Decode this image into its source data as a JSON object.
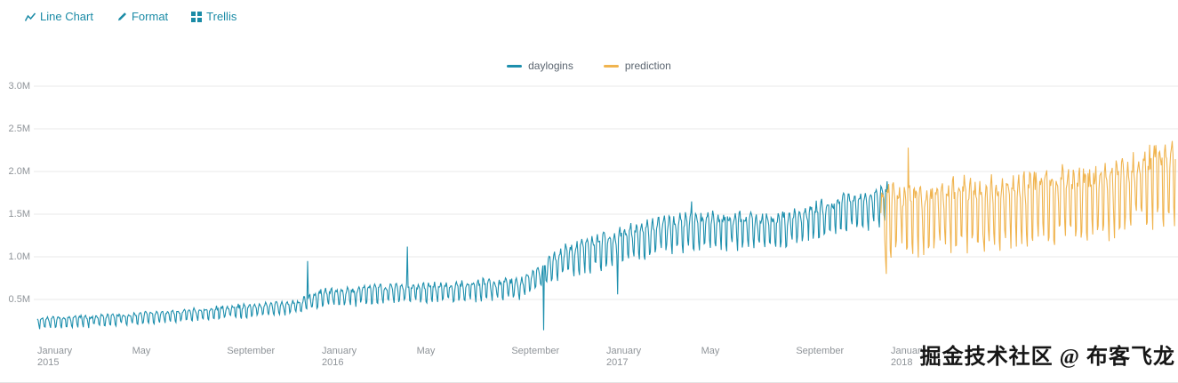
{
  "toolbar": {
    "items": [
      {
        "label": "Line Chart",
        "icon": "line-chart-icon"
      },
      {
        "label": "Format",
        "icon": "format-paintbrush-icon"
      },
      {
        "label": "Trellis",
        "icon": "trellis-grid-icon"
      }
    ]
  },
  "legend": {
    "items": [
      {
        "label": "daylogins",
        "color": "#1d8fad"
      },
      {
        "label": "prediction",
        "color": "#f0b44f"
      }
    ]
  },
  "watermark": {
    "text": "掘金技术社区 @ 布客飞龙"
  },
  "colors": {
    "toolbar_link": "#1b8ba6",
    "gridline": "#e9e9e9",
    "axis_label": "#8f9499",
    "daylogins": "#1d8fad",
    "prediction": "#f0b44f",
    "watermark": "#161616",
    "background": "#ffffff"
  },
  "chart_data": {
    "type": "line",
    "title": "",
    "xlabel": "",
    "ylabel": "",
    "x_axis_type": "time",
    "x_start_date": "2015-01-01",
    "x_span_years": 4.0,
    "ylim": [
      0,
      3000000
    ],
    "grid": "horizontal",
    "legend_position": "top-center",
    "values_unit": "logins per day",
    "y_ticks": [
      {
        "value": 500000,
        "label": "0.5M"
      },
      {
        "value": 1000000,
        "label": "1.0M"
      },
      {
        "value": 1500000,
        "label": "1.5M"
      },
      {
        "value": 2000000,
        "label": "2.0M"
      },
      {
        "value": 2500000,
        "label": "2.5M"
      },
      {
        "value": 3000000,
        "label": "3.0M"
      }
    ],
    "x_ticks": [
      {
        "pos": 0,
        "label": "January",
        "year": "2015"
      },
      {
        "pos": 0.3333,
        "label": "May",
        "year": ""
      },
      {
        "pos": 0.6667,
        "label": "September",
        "year": ""
      },
      {
        "pos": 1,
        "label": "January",
        "year": "2016"
      },
      {
        "pos": 1.3333,
        "label": "May",
        "year": ""
      },
      {
        "pos": 1.6667,
        "label": "September",
        "year": ""
      },
      {
        "pos": 2,
        "label": "January",
        "year": "2017"
      },
      {
        "pos": 2.3333,
        "label": "May",
        "year": ""
      },
      {
        "pos": 2.6667,
        "label": "September",
        "year": ""
      },
      {
        "pos": 3,
        "label": "January",
        "year": "2018"
      }
    ],
    "series": [
      {
        "name": "daylogins",
        "color": "#1d8fad",
        "start": 0.0,
        "end": 2.99,
        "seed": 11,
        "noise": 0.35,
        "weekly_profile": [
          -1.0,
          0.45,
          0.7,
          0.8,
          0.7,
          0.35,
          -0.8
        ],
        "trend_keyframes": [
          [
            0.0,
            230000,
            60000
          ],
          [
            0.33,
            280000,
            62000
          ],
          [
            0.67,
            360000,
            70000
          ],
          [
            0.92,
            420000,
            80000
          ],
          [
            1.0,
            520000,
            100000
          ],
          [
            1.25,
            580000,
            105000
          ],
          [
            1.5,
            600000,
            110000
          ],
          [
            1.7,
            640000,
            110000
          ],
          [
            1.78,
            800000,
            140000
          ],
          [
            1.85,
            960000,
            170000
          ],
          [
            2.0,
            1100000,
            190000
          ],
          [
            2.2,
            1280000,
            195000
          ],
          [
            2.4,
            1330000,
            200000
          ],
          [
            2.6,
            1310000,
            200000
          ],
          [
            2.75,
            1450000,
            200000
          ],
          [
            2.9,
            1560000,
            210000
          ],
          [
            2.99,
            1640000,
            220000
          ]
        ],
        "anomalies": [
          [
            0.95,
            950000
          ],
          [
            1.3,
            1120000
          ],
          [
            1.78,
            140000
          ],
          [
            2.04,
            560000
          ],
          [
            2.3,
            1650000
          ]
        ]
      },
      {
        "name": "prediction",
        "color": "#f0b44f",
        "start": 2.965,
        "end": 4.0,
        "seed": 23,
        "noise": 0.35,
        "weekly_profile": [
          -1.0,
          0.45,
          0.7,
          0.8,
          0.7,
          0.35,
          -0.8
        ],
        "trend_keyframes": [
          [
            2.965,
            1450000,
            380000
          ],
          [
            3.2,
            1520000,
            380000
          ],
          [
            3.5,
            1600000,
            380000
          ],
          [
            3.75,
            1700000,
            400000
          ],
          [
            3.9,
            1850000,
            420000
          ],
          [
            4.0,
            1950000,
            450000
          ]
        ],
        "anomalies": [
          [
            2.985,
            800000
          ],
          [
            3.06,
            2280000
          ],
          [
            3.33,
            1060000
          ]
        ]
      }
    ]
  }
}
